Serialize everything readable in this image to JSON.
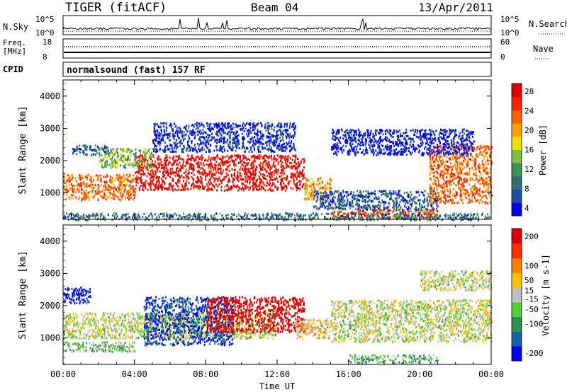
{
  "header": {
    "title": "TIGER (fitACF)",
    "beam": "Beam 04",
    "date": "13/Apr/2011"
  },
  "nsky": {
    "label": "N.Sky",
    "ticks": [
      "10^5",
      "10^0"
    ],
    "right_label": "N.Search",
    "right_ticks": [
      "10^5",
      "10^0"
    ]
  },
  "freq": {
    "label_line1": "Freq.",
    "label_line2": "[MHz]",
    "ticks": [
      "18",
      "8"
    ],
    "right_label": "Nave",
    "right_ticks": [
      "60",
      "0"
    ]
  },
  "cpid": {
    "label": "CPID",
    "text": "normalsound (fast) 157 RF"
  },
  "chart_data": [
    {
      "type": "heatmap",
      "name": "power",
      "ylabel": "Slant Range [km]",
      "xlabel": "",
      "y_ticks": [
        "4000",
        "3000",
        "2000",
        "1000"
      ],
      "x_ticks": [],
      "ylim": [
        180,
        4500
      ],
      "colorbar": {
        "label": "Power [dB]",
        "ticks": [
          "28",
          "24",
          "20",
          "16",
          "12",
          "8",
          "4"
        ],
        "colors": [
          "#0000ff",
          "#1a4fa0",
          "#2f6f6f",
          "#3f8f50",
          "#7fbf3f",
          "#f0e000",
          "#ffa000",
          "#ff6000",
          "#ff2000",
          "#e00000"
        ]
      },
      "regions": [
        {
          "t": [
            0.0,
            4.0
          ],
          "r": [
            800,
            1600
          ],
          "v": 22
        },
        {
          "t": [
            4.0,
            13.5
          ],
          "r": [
            1100,
            2200
          ],
          "v": 27
        },
        {
          "t": [
            13.5,
            15.0
          ],
          "r": [
            800,
            1500
          ],
          "v": 20
        },
        {
          "t": [
            15.0,
            21.0
          ],
          "r": [
            250,
            500
          ],
          "v": 24
        },
        {
          "t": [
            14.0,
            21.0
          ],
          "r": [
            500,
            1100
          ],
          "v": 8
        },
        {
          "t": [
            20.5,
            24.0
          ],
          "r": [
            700,
            2500
          ],
          "v": 22
        },
        {
          "t": [
            0.5,
            2.5
          ],
          "r": [
            2200,
            2500
          ],
          "v": 8
        },
        {
          "t": [
            2.0,
            5.0
          ],
          "r": [
            1800,
            2400
          ],
          "v": 14
        },
        {
          "t": [
            5.0,
            13.0
          ],
          "r": [
            2300,
            3200
          ],
          "v": 6
        },
        {
          "t": [
            15.0,
            23.0
          ],
          "r": [
            2200,
            3000
          ],
          "v": 5
        },
        {
          "t": [
            0.0,
            24.0
          ],
          "r": [
            180,
            400
          ],
          "v": 10
        }
      ]
    },
    {
      "type": "heatmap",
      "name": "velocity",
      "ylabel": "Slant Range [km]",
      "xlabel": "Time UT",
      "y_ticks": [
        "4000",
        "3000",
        "2000",
        "1000"
      ],
      "x_ticks": [
        "00:00",
        "04:00",
        "08:00",
        "12:00",
        "16:00",
        "20:00",
        "00:00"
      ],
      "xlim": [
        0,
        24
      ],
      "ylim": [
        180,
        4500
      ],
      "colorbar": {
        "label": "Velocity [m s-1]",
        "ticks": [
          "200",
          "100",
          "50",
          "15",
          "-15",
          "-50",
          "-100",
          "-200"
        ],
        "colors": [
          "#0000ff",
          "#1060b0",
          "#2f8f4f",
          "#50d030",
          "#c0c0c0",
          "#ffc000",
          "#ff8000",
          "#ff3000",
          "#e00000"
        ]
      },
      "regions": [
        {
          "t": [
            0.0,
            1.5
          ],
          "r": [
            2100,
            2600
          ],
          "v": -200
        },
        {
          "t": [
            0.0,
            12.0
          ],
          "r": [
            1000,
            1800
          ],
          "v": 0
        },
        {
          "t": [
            4.5,
            9.5
          ],
          "r": [
            800,
            2300
          ],
          "v": -150
        },
        {
          "t": [
            8.0,
            13.5
          ],
          "r": [
            1200,
            2300
          ],
          "v": 220
        },
        {
          "t": [
            13.0,
            15.0
          ],
          "r": [
            1000,
            1600
          ],
          "v": 40
        },
        {
          "t": [
            15.0,
            24.0
          ],
          "r": [
            900,
            2200
          ],
          "v": 0
        },
        {
          "t": [
            16.0,
            21.0
          ],
          "r": [
            250,
            500
          ],
          "v": -60
        },
        {
          "t": [
            20.0,
            24.0
          ],
          "r": [
            2500,
            3100
          ],
          "v": -5
        },
        {
          "t": [
            0.0,
            4.0
          ],
          "r": [
            600,
            900
          ],
          "v": -40
        }
      ]
    }
  ]
}
